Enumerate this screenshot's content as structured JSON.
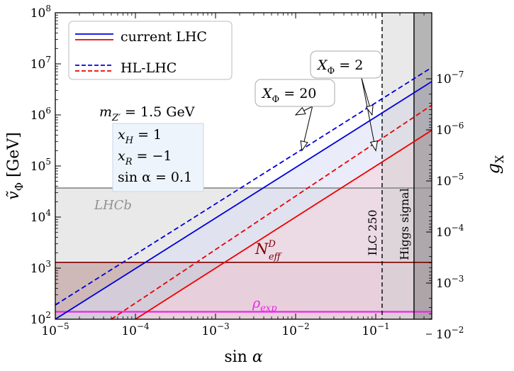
{
  "chart_data": {
    "type": "line",
    "xlabel": "sin α",
    "ylabel_left": "ṽ_Φ [GeV]",
    "ylabel_right": "g_X",
    "x_scale": "log",
    "y_scale": "log",
    "xlim": [
      1e-05,
      0.5
    ],
    "ylim": [
      100,
      100000000
    ],
    "x_ticks": [
      {
        "value": 1e-05,
        "base": "10",
        "exp": "−5"
      },
      {
        "value": 0.0001,
        "base": "10",
        "exp": "−4"
      },
      {
        "value": 0.001,
        "base": "10",
        "exp": "−3"
      },
      {
        "value": 0.01,
        "base": "10",
        "exp": "−2"
      },
      {
        "value": 0.1,
        "base": "10",
        "exp": "−1"
      }
    ],
    "y_ticks": [
      {
        "value": 100,
        "base": "10",
        "exp": "2"
      },
      {
        "value": 1000,
        "base": "10",
        "exp": "3"
      },
      {
        "value": 10000,
        "base": "10",
        "exp": "4"
      },
      {
        "value": 100000,
        "base": "10",
        "exp": "5"
      },
      {
        "value": 1000000,
        "base": "10",
        "exp": "6"
      },
      {
        "value": 10000000,
        "base": "10",
        "exp": "7"
      },
      {
        "value": 100000000,
        "base": "10",
        "exp": "8"
      }
    ],
    "right_ticks": [
      {
        "value": 1e-07,
        "at_v": 5100000,
        "base": "10",
        "exp": "−7"
      },
      {
        "value": 1e-06,
        "at_v": 510000,
        "base": "10",
        "exp": "−6"
      },
      {
        "value": 1e-05,
        "at_v": 51000,
        "base": "10",
        "exp": "−5"
      },
      {
        "value": 0.0001,
        "at_v": 5100,
        "base": "10",
        "exp": "−4"
      },
      {
        "value": 0.001,
        "at_v": 510,
        "base": "10",
        "exp": "−3"
      },
      {
        "value": 0.01,
        "at_v": 51,
        "base": "10",
        "exp": "−2"
      }
    ],
    "series": [
      {
        "name": "current LHC",
        "color": "#0000dd",
        "style": "solid",
        "x": [
          1e-05,
          0.5
        ],
        "y": [
          100,
          4500000
        ],
        "fill": "#d8dcf4"
      },
      {
        "name": "HL-LHC",
        "color": "#0000dd",
        "style": "dashed",
        "x": [
          1e-05,
          0.5
        ],
        "y": [
          190,
          8500000
        ]
      },
      {
        "name": "current LHC",
        "color": "#ee0000",
        "style": "solid",
        "x": [
          0.0001,
          0.5
        ],
        "y": [
          100,
          500000
        ],
        "fill": "#f5d4dc"
      },
      {
        "name": "HL-LHC",
        "color": "#ee0000",
        "style": "dashed",
        "x": [
          5e-05,
          0.5
        ],
        "y": [
          100,
          1550000
        ]
      }
    ],
    "bounds": [
      {
        "label": "LHCb",
        "kind": "horizontal",
        "value": 37000,
        "color": "#888888",
        "fill": "#b0b0b0"
      },
      {
        "label": "N",
        "sup": "D",
        "sub": "eff",
        "kind": "horizontal",
        "value": 1300,
        "color": "#7a0000",
        "fill": "#8a3a3a"
      },
      {
        "label": "ρ",
        "sub": "exp",
        "kind": "horizontal",
        "value": 140,
        "color": "#ee22ee"
      },
      {
        "label": "ILC 250",
        "kind": "vertical",
        "value": 0.12,
        "color": "#000000",
        "style": "dashed"
      },
      {
        "label": "Higgs signal",
        "kind": "vertical",
        "value": 0.3,
        "color": "#000000",
        "fill": "#555555"
      }
    ],
    "legend": {
      "placement": "top-left",
      "entries": [
        {
          "label": "current LHC",
          "style": "solid"
        },
        {
          "label": "HL-LHC",
          "style": "dashed"
        }
      ]
    },
    "parameters_box": {
      "mass_label": "m",
      "mass_sub": "Z′",
      "mass_value": " = 1.5 GeV",
      "lines": [
        {
          "var": "x",
          "sub": "H",
          "value": " = 1"
        },
        {
          "var": "x",
          "sub": "R",
          "value": " = −1"
        },
        {
          "var": "sin α",
          "sub": "",
          "value": " = 0.1"
        }
      ]
    },
    "annotations": [
      {
        "text_var": "X",
        "text_sub": "Φ",
        "text_value": " = 2",
        "targets": [
          [
            0.1,
            200000
          ],
          [
            0.09,
            1000000
          ]
        ]
      },
      {
        "text_var": "X",
        "text_sub": "Φ",
        "text_value": " = 20",
        "targets": [
          [
            0.012,
            200000
          ],
          [
            0.01,
            1000000
          ]
        ]
      }
    ]
  }
}
